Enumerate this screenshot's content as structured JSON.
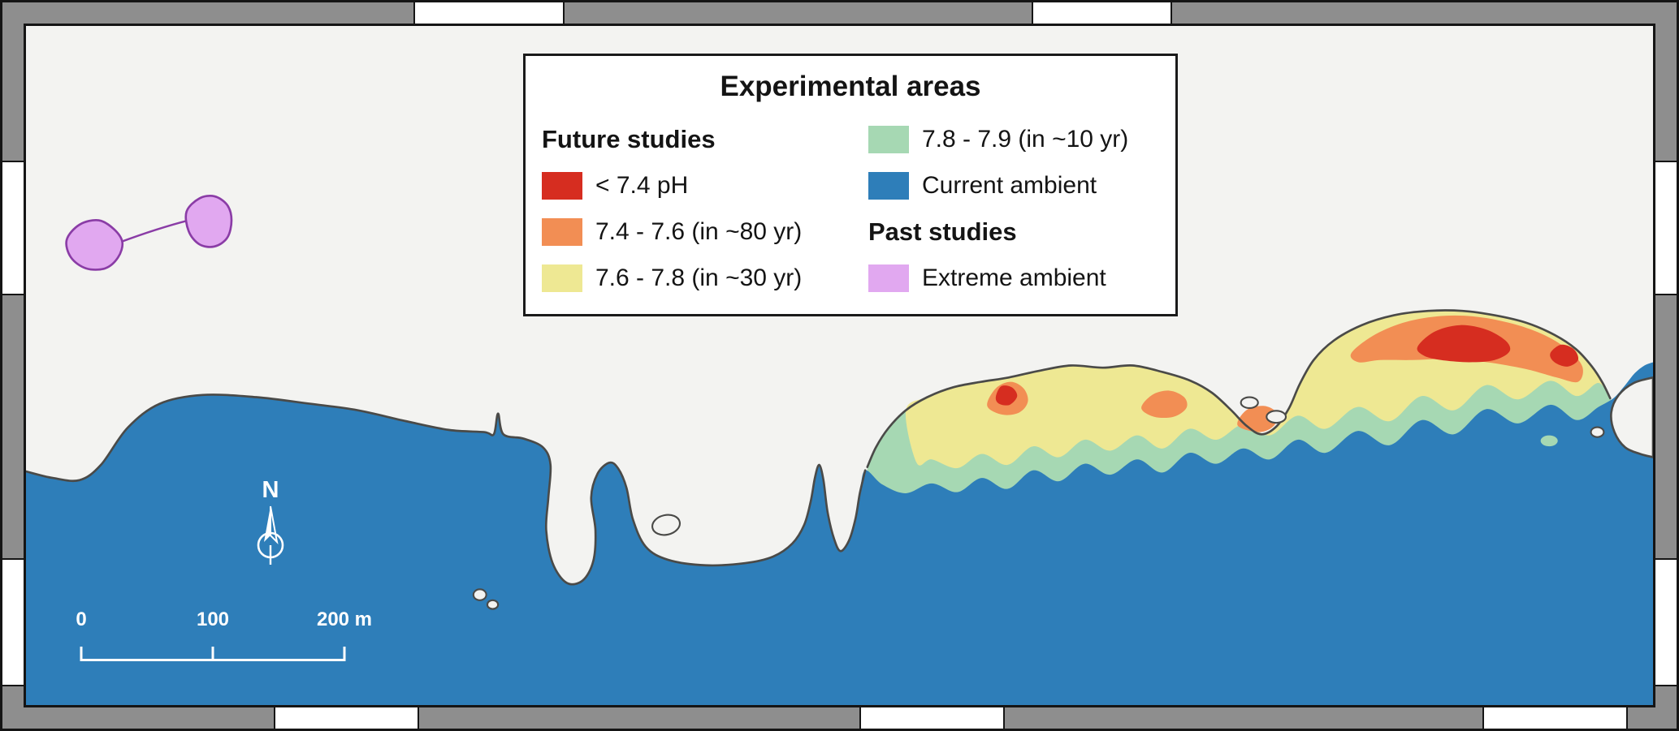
{
  "colors": {
    "sea": "#2e7eb9",
    "land": "#f3f3f1",
    "coast": "#4a4a48",
    "red": "#d62d20",
    "orange": "#f28e54",
    "yellow": "#eee893",
    "green": "#a6d8b3",
    "purple_fill": "#e1a8f0",
    "purple_stroke": "#8a3ca6",
    "frame_gray": "#8e8e8e"
  },
  "legend": {
    "title": "Experimental areas",
    "future_heading": "Future studies",
    "past_heading": "Past studies",
    "future_items": [
      {
        "label": "< 7.4 pH",
        "color": "#d62d20"
      },
      {
        "label": "7.4 - 7.6 (in ~80 yr)",
        "color": "#f28e54"
      },
      {
        "label": "7.6 - 7.8 (in ~30 yr)",
        "color": "#eee893"
      },
      {
        "label": "7.8 - 7.9 (in ~10 yr)",
        "color": "#a6d8b3"
      },
      {
        "label": "Current ambient",
        "color": "#2e7eb9"
      }
    ],
    "past_items": [
      {
        "label": "Extreme ambient",
        "color": "#e1a8f0"
      }
    ]
  },
  "north_arrow": {
    "label": "N"
  },
  "scale_bar": {
    "labels": [
      "0",
      "100",
      "200 m"
    ]
  }
}
